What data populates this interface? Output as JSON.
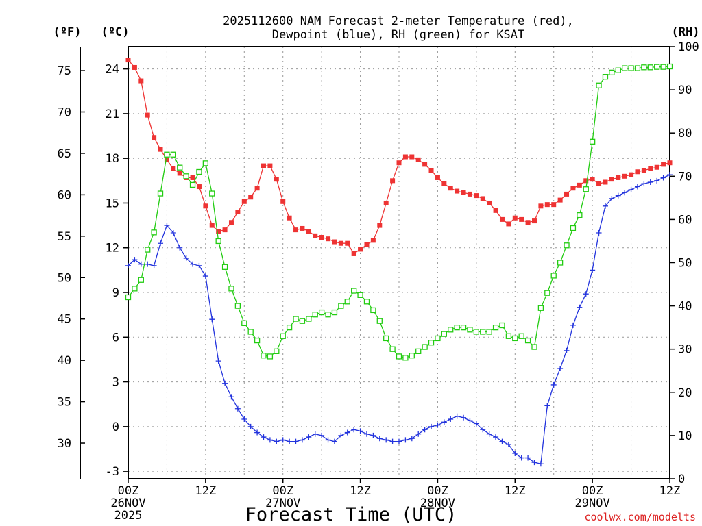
{
  "chart_data": {
    "type": "line",
    "title_line1": "2025112600 NAM Forecast 2-meter Temperature (red),",
    "title_line2": "Dewpoint (blue), RH (green) for KSAT",
    "xlabel": "Forecast Time (UTC)",
    "credit": "coolwx.com/modelts",
    "units": {
      "fahrenheit": "(ºF)",
      "celsius": "(ºC)",
      "rh": "(RH)"
    },
    "colors": {
      "temperature": "#ee3333",
      "dewpoint": "#2233dd",
      "rh": "#22cc11",
      "grid": "#999999"
    },
    "x_range_hours": [
      0,
      84
    ],
    "y_celsius_range": [
      -3.5,
      25.5
    ],
    "y_rh_range": [
      0,
      100
    ],
    "y_celsius_ticks": [
      "24",
      "21",
      "18",
      "15",
      "12",
      "9",
      "6",
      "3",
      "0",
      "-3"
    ],
    "y_fahrenheit_ticks": [
      "75",
      "70",
      "65",
      "60",
      "55",
      "50",
      "45",
      "40",
      "35",
      "30"
    ],
    "y_rh_ticks": [
      "100",
      "90",
      "80",
      "70",
      "60",
      "50",
      "40",
      "30",
      "20",
      "10",
      "0"
    ],
    "x_ticks": [
      {
        "hour": 0,
        "line1": "00Z",
        "line2": "26NOV",
        "line3": "2025"
      },
      {
        "hour": 12,
        "line1": "12Z",
        "line2": "",
        "line3": ""
      },
      {
        "hour": 24,
        "line1": "00Z",
        "line2": "27NOV",
        "line3": ""
      },
      {
        "hour": 36,
        "line1": "12Z",
        "line2": "",
        "line3": ""
      },
      {
        "hour": 48,
        "line1": "00Z",
        "line2": "28NOV",
        "line3": ""
      },
      {
        "hour": 60,
        "line1": "12Z",
        "line2": "",
        "line3": ""
      },
      {
        "hour": 72,
        "line1": "00Z",
        "line2": "29NOV",
        "line3": ""
      },
      {
        "hour": 84,
        "line1": "12Z",
        "line2": "",
        "line3": ""
      }
    ],
    "series": [
      {
        "name": "Temperature (C)",
        "axis": "celsius",
        "marker": "filled-square",
        "points": [
          [
            0,
            24.6
          ],
          [
            1,
            24.1
          ],
          [
            2,
            23.2
          ],
          [
            3,
            20.9
          ],
          [
            4,
            19.4
          ],
          [
            5,
            18.6
          ],
          [
            6,
            17.9
          ],
          [
            7,
            17.3
          ],
          [
            8,
            17.0
          ],
          [
            9,
            16.7
          ],
          [
            10,
            16.7
          ],
          [
            11,
            16.1
          ],
          [
            12,
            14.8
          ],
          [
            13,
            13.5
          ],
          [
            14,
            13.1
          ],
          [
            15,
            13.2
          ],
          [
            16,
            13.7
          ],
          [
            17,
            14.4
          ],
          [
            18,
            15.1
          ],
          [
            19,
            15.4
          ],
          [
            20,
            16.0
          ],
          [
            21,
            17.5
          ],
          [
            22,
            17.5
          ],
          [
            23,
            16.6
          ],
          [
            24,
            15.1
          ],
          [
            25,
            14.0
          ],
          [
            26,
            13.2
          ],
          [
            27,
            13.3
          ],
          [
            28,
            13.1
          ],
          [
            29,
            12.8
          ],
          [
            30,
            12.7
          ],
          [
            31,
            12.6
          ],
          [
            32,
            12.4
          ],
          [
            33,
            12.3
          ],
          [
            34,
            12.3
          ],
          [
            35,
            11.6
          ],
          [
            36,
            11.9
          ],
          [
            37,
            12.2
          ],
          [
            38,
            12.5
          ],
          [
            39,
            13.5
          ],
          [
            40,
            15.0
          ],
          [
            41,
            16.5
          ],
          [
            42,
            17.7
          ],
          [
            43,
            18.1
          ],
          [
            44,
            18.1
          ],
          [
            45,
            17.9
          ],
          [
            46,
            17.6
          ],
          [
            47,
            17.2
          ],
          [
            48,
            16.7
          ],
          [
            49,
            16.3
          ],
          [
            50,
            16.0
          ],
          [
            51,
            15.8
          ],
          [
            52,
            15.7
          ],
          [
            53,
            15.6
          ],
          [
            54,
            15.5
          ],
          [
            55,
            15.3
          ],
          [
            56,
            15.0
          ],
          [
            57,
            14.5
          ],
          [
            58,
            13.9
          ],
          [
            59,
            13.6
          ],
          [
            60,
            14.0
          ],
          [
            61,
            13.9
          ],
          [
            62,
            13.7
          ],
          [
            63,
            13.8
          ],
          [
            64,
            14.8
          ],
          [
            65,
            14.9
          ],
          [
            66,
            14.9
          ],
          [
            67,
            15.2
          ],
          [
            68,
            15.6
          ],
          [
            69,
            16.0
          ],
          [
            70,
            16.2
          ],
          [
            71,
            16.5
          ],
          [
            72,
            16.6
          ],
          [
            73,
            16.3
          ],
          [
            74,
            16.4
          ],
          [
            75,
            16.6
          ],
          [
            76,
            16.7
          ],
          [
            77,
            16.8
          ],
          [
            78,
            16.9
          ],
          [
            79,
            17.1
          ],
          [
            80,
            17.2
          ],
          [
            81,
            17.3
          ],
          [
            82,
            17.4
          ],
          [
            83,
            17.6
          ],
          [
            84,
            17.7
          ]
        ]
      },
      {
        "name": "Dewpoint (C)",
        "axis": "celsius",
        "marker": "plus",
        "points": [
          [
            0,
            10.8
          ],
          [
            1,
            11.2
          ],
          [
            2,
            10.9
          ],
          [
            3,
            10.9
          ],
          [
            4,
            10.8
          ],
          [
            5,
            12.3
          ],
          [
            6,
            13.5
          ],
          [
            7,
            13.0
          ],
          [
            8,
            12.0
          ],
          [
            9,
            11.3
          ],
          [
            10,
            10.9
          ],
          [
            11,
            10.8
          ],
          [
            12,
            10.1
          ],
          [
            13,
            7.2
          ],
          [
            14,
            4.4
          ],
          [
            15,
            2.9
          ],
          [
            16,
            2.0
          ],
          [
            17,
            1.2
          ],
          [
            18,
            0.5
          ],
          [
            19,
            0.0
          ],
          [
            20,
            -0.4
          ],
          [
            21,
            -0.7
          ],
          [
            22,
            -0.9
          ],
          [
            23,
            -1.0
          ],
          [
            24,
            -0.9
          ],
          [
            25,
            -1.0
          ],
          [
            26,
            -1.0
          ],
          [
            27,
            -0.9
          ],
          [
            28,
            -0.7
          ],
          [
            29,
            -0.5
          ],
          [
            30,
            -0.6
          ],
          [
            31,
            -0.9
          ],
          [
            32,
            -1.0
          ],
          [
            33,
            -0.6
          ],
          [
            34,
            -0.4
          ],
          [
            35,
            -0.2
          ],
          [
            36,
            -0.3
          ],
          [
            37,
            -0.5
          ],
          [
            38,
            -0.6
          ],
          [
            39,
            -0.8
          ],
          [
            40,
            -0.9
          ],
          [
            41,
            -1.0
          ],
          [
            42,
            -1.0
          ],
          [
            43,
            -0.9
          ],
          [
            44,
            -0.8
          ],
          [
            45,
            -0.5
          ],
          [
            46,
            -0.2
          ],
          [
            47,
            0.0
          ],
          [
            48,
            0.1
          ],
          [
            49,
            0.3
          ],
          [
            50,
            0.5
          ],
          [
            51,
            0.7
          ],
          [
            52,
            0.6
          ],
          [
            53,
            0.4
          ],
          [
            54,
            0.2
          ],
          [
            55,
            -0.2
          ],
          [
            56,
            -0.5
          ],
          [
            57,
            -0.7
          ],
          [
            58,
            -1.0
          ],
          [
            59,
            -1.2
          ],
          [
            60,
            -1.8
          ],
          [
            61,
            -2.1
          ],
          [
            62,
            -2.1
          ],
          [
            63,
            -2.4
          ],
          [
            64,
            -2.5
          ],
          [
            65,
            1.4
          ],
          [
            66,
            2.8
          ],
          [
            67,
            3.9
          ],
          [
            68,
            5.1
          ],
          [
            69,
            6.8
          ],
          [
            70,
            8.0
          ],
          [
            71,
            8.9
          ],
          [
            72,
            10.5
          ],
          [
            73,
            13.0
          ],
          [
            74,
            14.8
          ],
          [
            75,
            15.3
          ],
          [
            76,
            15.5
          ],
          [
            77,
            15.7
          ],
          [
            78,
            15.9
          ],
          [
            79,
            16.1
          ],
          [
            80,
            16.3
          ],
          [
            81,
            16.4
          ],
          [
            82,
            16.5
          ],
          [
            83,
            16.7
          ],
          [
            84,
            16.9
          ]
        ]
      },
      {
        "name": "Relative Humidity (%)",
        "axis": "rh",
        "marker": "open-square",
        "points": [
          [
            0,
            42
          ],
          [
            1,
            44
          ],
          [
            2,
            46
          ],
          [
            3,
            53
          ],
          [
            4,
            57
          ],
          [
            5,
            66
          ],
          [
            6,
            75
          ],
          [
            7,
            75
          ],
          [
            8,
            72
          ],
          [
            9,
            70
          ],
          [
            10,
            68
          ],
          [
            11,
            71
          ],
          [
            12,
            73
          ],
          [
            13,
            66
          ],
          [
            14,
            55
          ],
          [
            15,
            49
          ],
          [
            16,
            44
          ],
          [
            17,
            40
          ],
          [
            18,
            36
          ],
          [
            19,
            34
          ],
          [
            20,
            32
          ],
          [
            21,
            28.5
          ],
          [
            22,
            28.3
          ],
          [
            23,
            29.5
          ],
          [
            24,
            33
          ],
          [
            25,
            35
          ],
          [
            26,
            37
          ],
          [
            27,
            36.5
          ],
          [
            28,
            37
          ],
          [
            29,
            38
          ],
          [
            30,
            38.5
          ],
          [
            31,
            38
          ],
          [
            32,
            38.5
          ],
          [
            33,
            40
          ],
          [
            34,
            41
          ],
          [
            35,
            43.5
          ],
          [
            36,
            42.5
          ],
          [
            37,
            41
          ],
          [
            38,
            39
          ],
          [
            39,
            36.5
          ],
          [
            40,
            32.5
          ],
          [
            41,
            30
          ],
          [
            42,
            28.3
          ],
          [
            43,
            28
          ],
          [
            44,
            28.5
          ],
          [
            45,
            29.5
          ],
          [
            46,
            30.5
          ],
          [
            47,
            31.5
          ],
          [
            48,
            32.5
          ],
          [
            49,
            33.5
          ],
          [
            50,
            34.5
          ],
          [
            51,
            35
          ],
          [
            52,
            35
          ],
          [
            53,
            34.5
          ],
          [
            54,
            34
          ],
          [
            55,
            34
          ],
          [
            56,
            34
          ],
          [
            57,
            35
          ],
          [
            58,
            35.5
          ],
          [
            59,
            33
          ],
          [
            60,
            32.5
          ],
          [
            61,
            33
          ],
          [
            62,
            32
          ],
          [
            63,
            30.5
          ],
          [
            64,
            39.5
          ],
          [
            65,
            43
          ],
          [
            66,
            47
          ],
          [
            67,
            50
          ],
          [
            68,
            54
          ],
          [
            69,
            58
          ],
          [
            70,
            61
          ],
          [
            71,
            67
          ],
          [
            72,
            78
          ],
          [
            73,
            91
          ],
          [
            74,
            93
          ],
          [
            75,
            94
          ],
          [
            76,
            94.5
          ],
          [
            77,
            95
          ],
          [
            78,
            95
          ],
          [
            79,
            95
          ],
          [
            80,
            95.2
          ],
          [
            81,
            95.2
          ],
          [
            82,
            95.3
          ],
          [
            83,
            95.3
          ],
          [
            84,
            95.4
          ]
        ]
      }
    ]
  }
}
